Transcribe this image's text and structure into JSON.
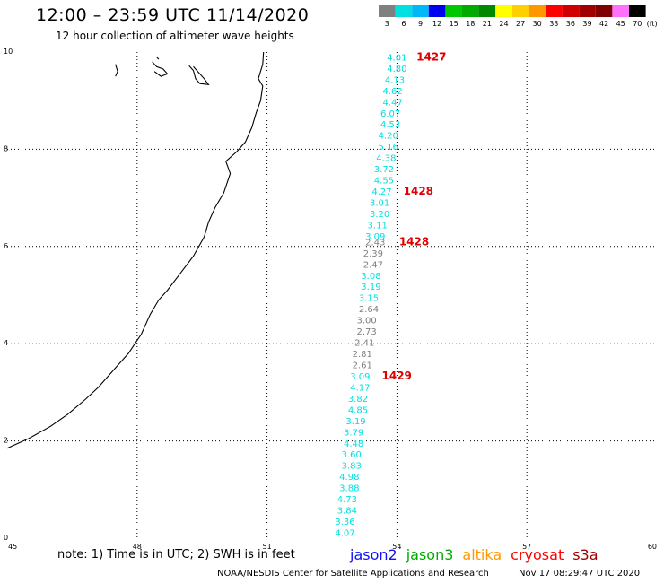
{
  "header": {
    "title": "12:00 – 23:59 UTC 11/14/2020",
    "subtitle": "12 hour collection of altimeter wave heights"
  },
  "legend": {
    "unit": "(ft)",
    "swatches": [
      {
        "label": "3",
        "color": "#808080"
      },
      {
        "label": "6",
        "color": "#00e0e0"
      },
      {
        "label": "9",
        "color": "#00b8f8"
      },
      {
        "label": "12",
        "color": "#0000f0"
      },
      {
        "label": "15",
        "color": "#00c800"
      },
      {
        "label": "18",
        "color": "#00aa00"
      },
      {
        "label": "21",
        "color": "#008800"
      },
      {
        "label": "24",
        "color": "#ffff00"
      },
      {
        "label": "27",
        "color": "#ffd000"
      },
      {
        "label": "30",
        "color": "#ff9800"
      },
      {
        "label": "33",
        "color": "#ff0000"
      },
      {
        "label": "36",
        "color": "#d00000"
      },
      {
        "label": "39",
        "color": "#a00000"
      },
      {
        "label": "42",
        "color": "#800000"
      },
      {
        "label": "45",
        "color": "#ff70ff"
      },
      {
        "label": "70",
        "color": "#000000"
      }
    ]
  },
  "chart_data": {
    "type": "scatter",
    "title": "12:00 – 23:59 UTC 11/14/2020",
    "subtitle": "12 hour collection of altimeter wave heights",
    "xlim": [
      45,
      60
    ],
    "ylim": [
      0,
      10
    ],
    "x_ticks": [
      "45",
      "48",
      "51",
      "54",
      "57",
      "60"
    ],
    "y_ticks": [
      "0",
      "2",
      "4",
      "6",
      "8",
      "10"
    ],
    "grid": true,
    "observations": [
      {
        "x": 54.0,
        "y": 9.9,
        "label": "4.01",
        "color": "#00e0e0"
      },
      {
        "x": 54.0,
        "y": 9.67,
        "label": "4.80",
        "color": "#00e0e0"
      },
      {
        "x": 53.95,
        "y": 9.44,
        "label": "4.13",
        "color": "#00e0e0"
      },
      {
        "x": 53.9,
        "y": 9.21,
        "label": "4.62",
        "color": "#00e0e0"
      },
      {
        "x": 53.9,
        "y": 8.98,
        "label": "4.47",
        "color": "#00e0e0"
      },
      {
        "x": 53.85,
        "y": 8.75,
        "label": "6.07",
        "color": "#00e0e0"
      },
      {
        "x": 53.85,
        "y": 8.52,
        "label": "4.53",
        "color": "#00e0e0"
      },
      {
        "x": 53.8,
        "y": 8.29,
        "label": "4.20",
        "color": "#00e0e0"
      },
      {
        "x": 53.8,
        "y": 8.06,
        "label": "5.16",
        "color": "#00e0e0"
      },
      {
        "x": 53.75,
        "y": 7.83,
        "label": "4.38",
        "color": "#00e0e0"
      },
      {
        "x": 53.7,
        "y": 7.6,
        "label": "3.72",
        "color": "#00e0e0"
      },
      {
        "x": 53.7,
        "y": 7.37,
        "label": "4.55",
        "color": "#00e0e0"
      },
      {
        "x": 53.65,
        "y": 7.14,
        "label": "4.27",
        "color": "#00e0e0"
      },
      {
        "x": 53.6,
        "y": 6.91,
        "label": "3.01",
        "color": "#00e0e0"
      },
      {
        "x": 53.6,
        "y": 6.68,
        "label": "3.20",
        "color": "#00e0e0"
      },
      {
        "x": 53.55,
        "y": 6.45,
        "label": "3.11",
        "color": "#00e0e0"
      },
      {
        "x": 53.5,
        "y": 6.22,
        "label": "3.09",
        "color": "#00e0e0"
      },
      {
        "x": 53.5,
        "y": 6.1,
        "label": "2.43",
        "color": "#808080"
      },
      {
        "x": 53.45,
        "y": 5.87,
        "label": "2.39",
        "color": "#808080"
      },
      {
        "x": 53.45,
        "y": 5.64,
        "label": "2.47",
        "color": "#808080"
      },
      {
        "x": 53.4,
        "y": 5.41,
        "label": "3.08",
        "color": "#00e0e0"
      },
      {
        "x": 53.4,
        "y": 5.18,
        "label": "3.19",
        "color": "#00e0e0"
      },
      {
        "x": 53.35,
        "y": 4.95,
        "label": "3.15",
        "color": "#00e0e0"
      },
      {
        "x": 53.35,
        "y": 4.72,
        "label": "2.64",
        "color": "#808080"
      },
      {
        "x": 53.3,
        "y": 4.49,
        "label": "3.00",
        "color": "#808080"
      },
      {
        "x": 53.3,
        "y": 4.26,
        "label": "2.73",
        "color": "#808080"
      },
      {
        "x": 53.25,
        "y": 4.03,
        "label": "2.41",
        "color": "#808080"
      },
      {
        "x": 53.2,
        "y": 3.8,
        "label": "2.81",
        "color": "#808080"
      },
      {
        "x": 53.2,
        "y": 3.57,
        "label": "2.61",
        "color": "#808080"
      },
      {
        "x": 53.15,
        "y": 3.34,
        "label": "3.09",
        "color": "#00e0e0"
      },
      {
        "x": 53.15,
        "y": 3.11,
        "label": "4.17",
        "color": "#00e0e0"
      },
      {
        "x": 53.1,
        "y": 2.88,
        "label": "3.82",
        "color": "#00e0e0"
      },
      {
        "x": 53.1,
        "y": 2.65,
        "label": "4.85",
        "color": "#00e0e0"
      },
      {
        "x": 53.05,
        "y": 2.42,
        "label": "3.19",
        "color": "#00e0e0"
      },
      {
        "x": 53.0,
        "y": 2.19,
        "label": "3.79",
        "color": "#00e0e0"
      },
      {
        "x": 53.0,
        "y": 1.96,
        "label": "4.48",
        "color": "#00e0e0"
      },
      {
        "x": 52.95,
        "y": 1.73,
        "label": "3.60",
        "color": "#00e0e0"
      },
      {
        "x": 52.95,
        "y": 1.5,
        "label": "3.83",
        "color": "#00e0e0"
      },
      {
        "x": 52.9,
        "y": 1.27,
        "label": "4.98",
        "color": "#00e0e0"
      },
      {
        "x": 52.9,
        "y": 1.04,
        "label": "3.88",
        "color": "#00e0e0"
      },
      {
        "x": 52.85,
        "y": 0.81,
        "label": "4.73",
        "color": "#00e0e0"
      },
      {
        "x": 52.85,
        "y": 0.58,
        "label": "3.84",
        "color": "#00e0e0"
      },
      {
        "x": 52.8,
        "y": 0.35,
        "label": "3.36",
        "color": "#00e0e0"
      },
      {
        "x": 52.8,
        "y": 0.12,
        "label": "4.07",
        "color": "#00e0e0"
      }
    ],
    "pass_labels": [
      {
        "x": 54.45,
        "y": 9.9,
        "label": "1427"
      },
      {
        "x": 54.15,
        "y": 7.14,
        "label": "1428"
      },
      {
        "x": 54.05,
        "y": 6.1,
        "label": "1428"
      },
      {
        "x": 53.65,
        "y": 3.34,
        "label": "1429"
      }
    ],
    "coastline": [
      [
        45,
        1.85
      ],
      [
        45.5,
        2.05
      ],
      [
        46,
        2.3
      ],
      [
        46.4,
        2.55
      ],
      [
        46.8,
        2.85
      ],
      [
        47.1,
        3.1
      ],
      [
        47.4,
        3.4
      ],
      [
        47.8,
        3.8
      ],
      [
        48.1,
        4.2
      ],
      [
        48.3,
        4.6
      ],
      [
        48.5,
        4.9
      ],
      [
        48.7,
        5.1
      ],
      [
        49,
        5.45
      ],
      [
        49.3,
        5.8
      ],
      [
        49.55,
        6.2
      ],
      [
        49.65,
        6.5
      ],
      [
        49.8,
        6.8
      ],
      [
        50.0,
        7.1
      ],
      [
        50.15,
        7.5
      ],
      [
        50.05,
        7.75
      ],
      [
        50.3,
        7.95
      ],
      [
        50.5,
        8.15
      ],
      [
        50.65,
        8.45
      ],
      [
        50.75,
        8.75
      ],
      [
        50.85,
        9.0
      ],
      [
        50.9,
        9.3
      ],
      [
        50.8,
        9.45
      ],
      [
        50.9,
        9.75
      ],
      [
        50.92,
        10.0
      ]
    ],
    "islands": [
      [
        [
          47.5,
          9.75
        ],
        [
          47.55,
          9.6
        ],
        [
          47.5,
          9.5
        ]
      ],
      [
        [
          48.35,
          9.8
        ],
        [
          48.45,
          9.7
        ],
        [
          48.6,
          9.65
        ],
        [
          48.7,
          9.55
        ],
        [
          48.55,
          9.5
        ],
        [
          48.4,
          9.6
        ]
      ],
      [
        [
          48.45,
          9.9
        ],
        [
          48.5,
          9.85
        ]
      ],
      [
        [
          49.2,
          9.72
        ],
        [
          49.3,
          9.62
        ],
        [
          49.35,
          9.45
        ],
        [
          49.45,
          9.35
        ],
        [
          49.65,
          9.33
        ],
        [
          49.55,
          9.45
        ],
        [
          49.4,
          9.6
        ],
        [
          49.3,
          9.7
        ]
      ]
    ]
  },
  "footer": {
    "note": "note:  1) Time is in UTC;  2) SWH is in feet",
    "satellites": [
      {
        "label": "jason2",
        "color": "#1010ff"
      },
      {
        "label": "jason3",
        "color": "#00aa00"
      },
      {
        "label": "altika",
        "color": "#ff9800"
      },
      {
        "label": "cryosat",
        "color": "#ff0000"
      },
      {
        "label": "s3a",
        "color": "#a00000"
      }
    ],
    "credit": "NOAA/NESDIS Center for Satellite Applications and Research",
    "timestamp": "Nov 17 08:29:47 UTC 2020"
  }
}
